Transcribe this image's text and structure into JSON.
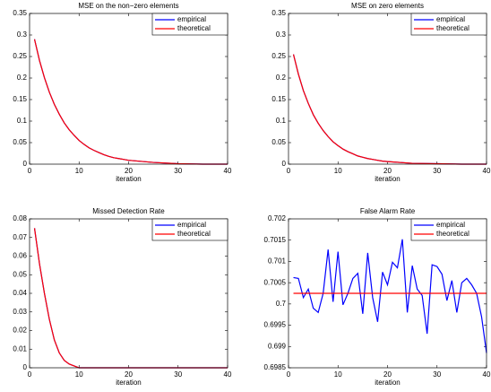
{
  "chart_data": [
    {
      "type": "line",
      "title": "MSE on the non−zero elements",
      "x_label": "iteration",
      "x": [
        1,
        2,
        3,
        4,
        5,
        6,
        7,
        8,
        9,
        10,
        11,
        12,
        13,
        14,
        15,
        16,
        17,
        18,
        19,
        20,
        25,
        30,
        35,
        40
      ],
      "series": [
        {
          "name": "empirical",
          "color": "#0000ff",
          "values": [
            0.29,
            0.241,
            0.201,
            0.167,
            0.139,
            0.116,
            0.096,
            0.08,
            0.067,
            0.055,
            0.046,
            0.038,
            0.032,
            0.027,
            0.022,
            0.018,
            0.015,
            0.013,
            0.011,
            0.009,
            0.004,
            0.001,
            0,
            0
          ]
        },
        {
          "name": "theoretical",
          "color": "#ff0000",
          "values": [
            0.29,
            0.241,
            0.201,
            0.167,
            0.139,
            0.116,
            0.096,
            0.08,
            0.067,
            0.055,
            0.046,
            0.038,
            0.032,
            0.027,
            0.022,
            0.018,
            0.015,
            0.013,
            0.011,
            0.009,
            0.004,
            0.001,
            0,
            0
          ]
        }
      ],
      "xlim": [
        0,
        40
      ],
      "xticks": [
        0,
        10,
        20,
        30,
        40
      ],
      "ylim": [
        0,
        0.35
      ],
      "yticks": [
        0,
        0.05,
        0.1,
        0.15,
        0.2,
        0.25,
        0.3,
        0.35
      ],
      "legend": "upper-right"
    },
    {
      "type": "line",
      "title": "MSE on zero elements",
      "x_label": "iteration",
      "x": [
        1,
        2,
        3,
        4,
        5,
        6,
        7,
        8,
        9,
        10,
        11,
        12,
        13,
        14,
        15,
        16,
        17,
        18,
        19,
        20,
        25,
        30,
        35,
        40
      ],
      "series": [
        {
          "name": "empirical",
          "color": "#0000ff",
          "values": [
            0.255,
            0.209,
            0.171,
            0.141,
            0.115,
            0.095,
            0.078,
            0.064,
            0.052,
            0.043,
            0.035,
            0.029,
            0.024,
            0.019,
            0.016,
            0.013,
            0.011,
            0.009,
            0.007,
            0.006,
            0.002,
            0.001,
            0,
            0
          ]
        },
        {
          "name": "theoretical",
          "color": "#ff0000",
          "values": [
            0.255,
            0.209,
            0.171,
            0.141,
            0.115,
            0.095,
            0.078,
            0.064,
            0.052,
            0.043,
            0.035,
            0.029,
            0.024,
            0.019,
            0.016,
            0.013,
            0.011,
            0.009,
            0.007,
            0.006,
            0.002,
            0.001,
            0,
            0
          ]
        }
      ],
      "xlim": [
        0,
        40
      ],
      "xticks": [
        0,
        10,
        20,
        30,
        40
      ],
      "ylim": [
        0,
        0.35
      ],
      "yticks": [
        0,
        0.05,
        0.1,
        0.15,
        0.2,
        0.25,
        0.3,
        0.35
      ],
      "legend": "upper-right"
    },
    {
      "type": "line",
      "title": "Missed Detection Rate",
      "x_label": "iteration",
      "x": [
        1,
        2,
        3,
        4,
        5,
        6,
        7,
        8,
        9,
        10,
        20,
        30,
        40
      ],
      "series": [
        {
          "name": "empirical",
          "color": "#0000ff",
          "values": [
            0.075,
            0.056,
            0.04,
            0.026,
            0.015,
            0.008,
            0.004,
            0.002,
            0.001,
            0,
            0,
            0,
            0
          ]
        },
        {
          "name": "theoretical",
          "color": "#ff0000",
          "values": [
            0.075,
            0.056,
            0.04,
            0.026,
            0.015,
            0.008,
            0.004,
            0.002,
            0.001,
            0,
            0,
            0,
            0
          ]
        }
      ],
      "xlim": [
        0,
        40
      ],
      "xticks": [
        0,
        10,
        20,
        30,
        40
      ],
      "ylim": [
        0,
        0.08
      ],
      "yticks": [
        0,
        0.01,
        0.02,
        0.03,
        0.04,
        0.05,
        0.06,
        0.07,
        0.08
      ],
      "legend": "upper-right"
    },
    {
      "type": "line",
      "title": "False Alarm Rate",
      "x_label": "iteration",
      "x": [
        1,
        2,
        3,
        4,
        5,
        6,
        7,
        8,
        9,
        10,
        11,
        12,
        13,
        14,
        15,
        16,
        17,
        18,
        19,
        20,
        21,
        22,
        23,
        24,
        25,
        26,
        27,
        28,
        29,
        30,
        31,
        32,
        33,
        34,
        35,
        36,
        37,
        38,
        39,
        40
      ],
      "series": [
        {
          "name": "empirical",
          "color": "#0000ff",
          "values": [
            0.70062,
            0.7006,
            0.70015,
            0.70035,
            0.6999,
            0.6998,
            0.70025,
            0.70128,
            0.70005,
            0.70123,
            0.69998,
            0.70025,
            0.7006,
            0.70072,
            0.69977,
            0.7012,
            0.70015,
            0.69958,
            0.70075,
            0.70045,
            0.70098,
            0.70085,
            0.70152,
            0.6998,
            0.7009,
            0.70035,
            0.7002,
            0.6993,
            0.70092,
            0.70088,
            0.7007,
            0.70008,
            0.70055,
            0.6998,
            0.7005,
            0.7006,
            0.70045,
            0.70025,
            0.6997,
            0.69885
          ]
        },
        {
          "name": "theoretical",
          "color": "#ff0000",
          "values": [
            0.70025,
            0.70025,
            0.70025,
            0.70025,
            0.70025,
            0.70025,
            0.70025,
            0.70025,
            0.70025,
            0.70025,
            0.70025,
            0.70025,
            0.70025,
            0.70025,
            0.70025,
            0.70025,
            0.70025,
            0.70025,
            0.70025,
            0.70025,
            0.70025,
            0.70025,
            0.70025,
            0.70025,
            0.70025,
            0.70025,
            0.70025,
            0.70025,
            0.70025,
            0.70025,
            0.70025,
            0.70025,
            0.70025,
            0.70025,
            0.70025,
            0.70025,
            0.70025,
            0.70025,
            0.70025,
            0.70025
          ]
        }
      ],
      "xlim": [
        0,
        40
      ],
      "xticks": [
        0,
        10,
        20,
        30,
        40
      ],
      "ylim": [
        0.6985,
        0.702
      ],
      "yticks": [
        0.6985,
        0.699,
        0.6995,
        0.7,
        0.7005,
        0.701,
        0.7015,
        0.702
      ],
      "legend": "upper-right"
    }
  ]
}
